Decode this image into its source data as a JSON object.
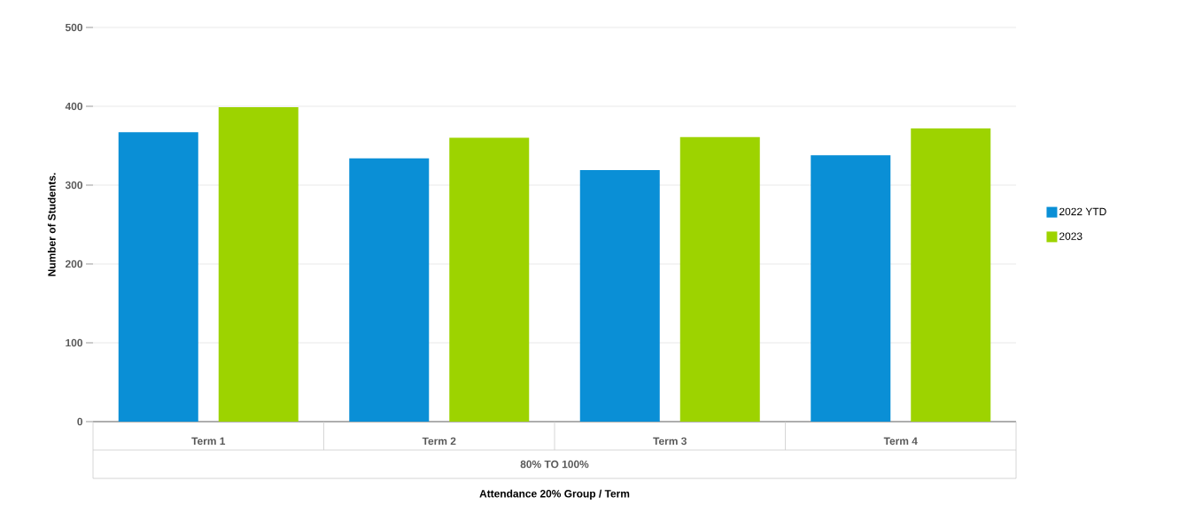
{
  "chart_data": {
    "type": "bar",
    "xlabel": "Attendance 20% Group / Term",
    "ylabel": "Number of Students.",
    "categories": [
      "Term 1",
      "Term 2",
      "Term 3",
      "Term 4"
    ],
    "series": [
      {
        "name": "2022 YTD",
        "color": "#0a8fd6",
        "values": [
          367,
          334,
          319,
          338
        ]
      },
      {
        "name": "2023",
        "color": "#9dd300",
        "values": [
          399,
          360,
          361,
          372
        ]
      }
    ],
    "annotations": [
      "80% TO 100%"
    ],
    "ylim": [
      0,
      500
    ],
    "yticks": [
      0,
      100,
      200,
      300,
      400,
      500
    ],
    "grid": "y",
    "legend": "right"
  }
}
